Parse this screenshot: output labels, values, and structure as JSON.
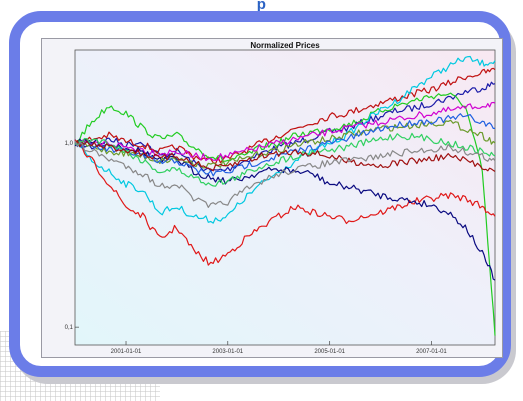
{
  "page": {
    "header_text": "p",
    "frame_color": "#6b7de8",
    "header_color": "#2b62c4"
  },
  "chart_data": {
    "type": "line",
    "title": "Normalized Prices",
    "xlabel": "",
    "ylabel": "",
    "y_scale": "log",
    "xlim": [
      "2000-01-01",
      "2008-04-01"
    ],
    "ylim": [
      0.08,
      3.2
    ],
    "x_ticks": [
      "2001-01-01",
      "2003-01-01",
      "2005-01-01",
      "2007-01-01"
    ],
    "y_ticks": [
      {
        "value": 1,
        "label": "1,0"
      },
      {
        "value": 0.1,
        "label": "0,1"
      }
    ],
    "grid": false,
    "legend": "none",
    "x": [
      "2000-01-01",
      "2000-05-01",
      "2000-09-01",
      "2001-01-01",
      "2001-05-01",
      "2001-09-01",
      "2002-01-01",
      "2002-05-01",
      "2002-09-01",
      "2003-01-01",
      "2003-05-01",
      "2003-09-01",
      "2004-01-01",
      "2004-05-01",
      "2004-09-01",
      "2005-01-01",
      "2005-05-01",
      "2005-09-01",
      "2006-01-01",
      "2006-05-01",
      "2006-09-01",
      "2007-01-01",
      "2007-05-01",
      "2007-09-01",
      "2008-01-01",
      "2008-04-01"
    ],
    "series": [
      {
        "color": "#1a1aa8",
        "values": [
          1.0,
          0.95,
          1.05,
          0.98,
          1.02,
          0.85,
          0.9,
          0.78,
          0.7,
          0.72,
          0.8,
          0.88,
          0.95,
          1.0,
          1.08,
          1.15,
          1.2,
          1.3,
          1.4,
          1.5,
          1.55,
          1.65,
          1.75,
          1.9,
          2.0,
          2.1
        ]
      },
      {
        "color": "#c01010",
        "values": [
          1.0,
          1.05,
          1.1,
          1.02,
          0.98,
          0.9,
          0.95,
          0.85,
          0.8,
          0.82,
          0.9,
          1.0,
          1.1,
          1.2,
          1.3,
          1.4,
          1.45,
          1.55,
          1.65,
          1.75,
          1.85,
          1.95,
          2.1,
          2.3,
          2.4,
          2.5
        ]
      },
      {
        "color": "#22cc22",
        "values": [
          1.0,
          1.3,
          1.6,
          1.45,
          1.2,
          1.05,
          1.1,
          0.95,
          0.85,
          0.8,
          0.85,
          0.95,
          1.0,
          1.1,
          1.15,
          1.2,
          1.25,
          1.35,
          1.5,
          1.6,
          1.7,
          1.8,
          1.85,
          1.6,
          0.7,
          0.09
        ]
      },
      {
        "color": "#00c8e0",
        "values": [
          1.0,
          0.8,
          0.7,
          0.6,
          0.55,
          0.42,
          0.45,
          0.4,
          0.38,
          0.4,
          0.5,
          0.6,
          0.7,
          0.8,
          0.9,
          1.0,
          1.1,
          1.3,
          1.5,
          1.7,
          2.0,
          2.3,
          2.6,
          2.9,
          2.7,
          2.8
        ]
      },
      {
        "color": "#d000d0",
        "values": [
          1.0,
          0.98,
          1.0,
          0.95,
          0.92,
          0.88,
          0.9,
          0.85,
          0.83,
          0.85,
          0.9,
          0.95,
          1.0,
          1.05,
          1.1,
          1.15,
          1.2,
          1.25,
          1.3,
          1.35,
          1.4,
          1.45,
          1.5,
          1.55,
          1.6,
          1.65
        ]
      },
      {
        "color": "#e01818",
        "values": [
          1.0,
          0.8,
          0.6,
          0.45,
          0.4,
          0.3,
          0.35,
          0.26,
          0.22,
          0.25,
          0.3,
          0.35,
          0.4,
          0.45,
          0.42,
          0.4,
          0.38,
          0.4,
          0.42,
          0.45,
          0.48,
          0.5,
          0.52,
          0.5,
          0.45,
          0.4
        ]
      },
      {
        "color": "#0a0a80",
        "values": [
          1.0,
          1.02,
          0.98,
          0.95,
          0.9,
          0.8,
          0.82,
          0.7,
          0.65,
          0.62,
          0.65,
          0.7,
          0.72,
          0.7,
          0.68,
          0.6,
          0.58,
          0.55,
          0.52,
          0.5,
          0.48,
          0.46,
          0.42,
          0.35,
          0.25,
          0.18
        ]
      },
      {
        "color": "#6a9a2a",
        "values": [
          1.0,
          0.95,
          0.9,
          0.88,
          0.85,
          0.8,
          0.82,
          0.78,
          0.75,
          0.78,
          0.82,
          0.88,
          0.92,
          0.98,
          1.02,
          1.05,
          1.1,
          1.15,
          1.2,
          1.22,
          1.25,
          1.28,
          1.3,
          1.2,
          1.1,
          1.0
        ]
      },
      {
        "color": "#2060e0",
        "values": [
          1.0,
          0.96,
          0.92,
          0.9,
          0.85,
          0.78,
          0.8,
          0.72,
          0.68,
          0.7,
          0.75,
          0.8,
          0.85,
          0.9,
          0.95,
          1.0,
          1.05,
          1.12,
          1.2,
          1.25,
          1.3,
          1.32,
          1.35,
          1.4,
          1.3,
          1.2
        ]
      },
      {
        "color": "#30d060",
        "values": [
          1.0,
          1.05,
          1.0,
          0.9,
          0.8,
          0.7,
          0.72,
          0.65,
          0.6,
          0.62,
          0.68,
          0.75,
          0.8,
          0.85,
          0.9,
          0.92,
          0.95,
          1.0,
          1.05,
          1.1,
          1.08,
          1.05,
          1.0,
          0.95,
          0.9,
          0.85
        ]
      },
      {
        "color": "#a01010",
        "values": [
          1.0,
          0.98,
          0.95,
          0.92,
          0.88,
          0.82,
          0.85,
          0.78,
          0.72,
          0.75,
          0.8,
          0.85,
          0.88,
          0.9,
          0.88,
          0.85,
          0.8,
          0.78,
          0.75,
          0.78,
          0.8,
          0.82,
          0.85,
          0.8,
          0.75,
          0.7
        ]
      },
      {
        "color": "#888888",
        "values": [
          1.0,
          0.9,
          0.82,
          0.75,
          0.68,
          0.58,
          0.6,
          0.5,
          0.45,
          0.48,
          0.55,
          0.62,
          0.68,
          0.72,
          0.75,
          0.78,
          0.8,
          0.82,
          0.85,
          0.88,
          0.9,
          0.92,
          0.95,
          0.9,
          0.85,
          0.8
        ]
      }
    ]
  }
}
